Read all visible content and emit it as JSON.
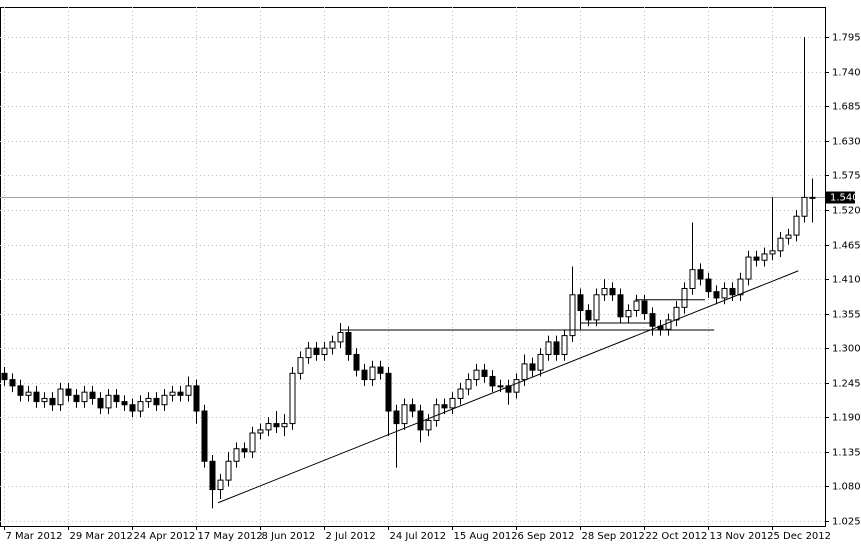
{
  "chart_data": {
    "type": "candlestick",
    "xticks": [
      {
        "value": 0,
        "label": "7 Mar 2012"
      },
      {
        "value": 8,
        "label": "29 Mar 2012"
      },
      {
        "value": 16,
        "label": "24 Apr 2012"
      },
      {
        "value": 24,
        "label": "17 May 2012"
      },
      {
        "value": 32,
        "label": "8 Jun 2012"
      },
      {
        "value": 40,
        "label": "2 Jul 2012"
      },
      {
        "value": 48,
        "label": "24 Jul 2012"
      },
      {
        "value": 56,
        "label": "15 Aug 2012"
      },
      {
        "value": 64,
        "label": "6 Sep 2012"
      },
      {
        "value": 72,
        "label": "28 Sep 2012"
      },
      {
        "value": 80,
        "label": "22 Oct 2012"
      },
      {
        "value": 88,
        "label": "13 Nov 2012"
      },
      {
        "value": 96,
        "label": "5 Dec 2012"
      }
    ],
    "xlim": [
      -0.5,
      102.6
    ],
    "ylim": [
      1.017,
      1.843
    ],
    "yticks": [
      1.025,
      {
        "value": 1.08,
        "label": "1.080"
      },
      1.135,
      {
        "value": 1.19,
        "label": "1.190"
      },
      1.245,
      {
        "value": 1.3,
        "label": "1.300"
      },
      1.355,
      {
        "value": 1.41,
        "label": "1.410"
      },
      1.465,
      {
        "value": 1.52,
        "label": "1.520"
      },
      1.575,
      {
        "value": 1.63,
        "label": "1.630"
      },
      1.685,
      {
        "value": 1.74,
        "label": "1.740"
      },
      1.795
    ],
    "grid": true,
    "up_color": "#ffffff",
    "down_color": "#000000",
    "open": [
      1.26,
      1.25,
      1.24,
      1.225,
      1.23,
      1.215,
      1.22,
      1.21,
      1.235,
      1.225,
      1.215,
      1.23,
      1.22,
      1.205,
      1.225,
      1.215,
      1.21,
      1.2,
      1.215,
      1.22,
      1.21,
      1.225,
      1.23,
      1.225,
      1.24,
      1.2,
      1.12,
      1.075,
      1.09,
      1.12,
      1.14,
      1.135,
      1.165,
      1.17,
      1.18,
      1.175,
      1.18,
      1.26,
      1.285,
      1.3,
      1.29,
      1.3,
      1.31,
      1.325,
      1.29,
      1.265,
      1.25,
      1.27,
      1.26,
      1.2,
      1.18,
      1.21,
      1.2,
      1.17,
      1.185,
      1.21,
      1.205,
      1.22,
      1.235,
      1.25,
      1.265,
      1.255,
      1.24,
      1.24,
      1.23,
      1.25,
      1.275,
      1.265,
      1.29,
      1.31,
      1.29,
      1.32,
      1.385,
      1.36,
      1.345,
      1.385,
      1.395,
      1.385,
      1.35,
      1.36,
      1.375,
      1.355,
      1.335,
      1.33,
      1.345,
      1.365,
      1.395,
      1.425,
      1.41,
      1.39,
      1.38,
      1.395,
      1.385,
      1.41,
      1.445,
      1.44,
      1.45,
      1.455,
      1.475,
      1.48,
      1.51,
      1.54
    ],
    "high": [
      1.27,
      1.26,
      1.25,
      1.24,
      1.24,
      1.23,
      1.23,
      1.245,
      1.245,
      1.235,
      1.24,
      1.24,
      1.23,
      1.235,
      1.235,
      1.225,
      1.22,
      1.225,
      1.23,
      1.23,
      1.235,
      1.24,
      1.24,
      1.255,
      1.25,
      1.21,
      1.13,
      1.1,
      1.135,
      1.15,
      1.15,
      1.175,
      1.18,
      1.19,
      1.2,
      1.195,
      1.27,
      1.295,
      1.31,
      1.31,
      1.31,
      1.32,
      1.34,
      1.335,
      1.3,
      1.275,
      1.28,
      1.28,
      1.27,
      1.21,
      1.22,
      1.22,
      1.21,
      1.195,
      1.22,
      1.22,
      1.23,
      1.245,
      1.26,
      1.275,
      1.275,
      1.265,
      1.25,
      1.25,
      1.26,
      1.29,
      1.285,
      1.3,
      1.32,
      1.32,
      1.33,
      1.43,
      1.395,
      1.37,
      1.395,
      1.41,
      1.405,
      1.395,
      1.37,
      1.385,
      1.385,
      1.365,
      1.345,
      1.355,
      1.375,
      1.405,
      1.5,
      1.435,
      1.42,
      1.4,
      1.405,
      1.405,
      1.42,
      1.455,
      1.455,
      1.46,
      1.54,
      1.485,
      1.49,
      1.52,
      1.795,
      1.57
    ],
    "low": [
      1.24,
      1.23,
      1.215,
      1.215,
      1.205,
      1.205,
      1.2,
      1.2,
      1.215,
      1.205,
      1.205,
      1.21,
      1.195,
      1.195,
      1.205,
      1.2,
      1.19,
      1.19,
      1.205,
      1.2,
      1.2,
      1.215,
      1.215,
      1.215,
      1.18,
      1.11,
      1.045,
      1.06,
      1.08,
      1.11,
      1.125,
      1.125,
      1.155,
      1.16,
      1.165,
      1.16,
      1.17,
      1.25,
      1.275,
      1.28,
      1.28,
      1.29,
      1.3,
      1.28,
      1.255,
      1.24,
      1.24,
      1.25,
      1.16,
      1.11,
      1.17,
      1.19,
      1.15,
      1.16,
      1.175,
      1.195,
      1.195,
      1.21,
      1.225,
      1.24,
      1.245,
      1.23,
      1.23,
      1.21,
      1.22,
      1.24,
      1.255,
      1.255,
      1.28,
      1.28,
      1.28,
      1.31,
      1.33,
      1.335,
      1.335,
      1.375,
      1.375,
      1.34,
      1.34,
      1.35,
      1.345,
      1.32,
      1.32,
      1.32,
      1.335,
      1.355,
      1.385,
      1.4,
      1.38,
      1.37,
      1.37,
      1.375,
      1.375,
      1.4,
      1.43,
      1.43,
      1.44,
      1.445,
      1.465,
      1.47,
      1.5,
      1.5
    ],
    "close": [
      1.25,
      1.24,
      1.225,
      1.23,
      1.215,
      1.22,
      1.21,
      1.235,
      1.225,
      1.215,
      1.23,
      1.22,
      1.205,
      1.225,
      1.215,
      1.21,
      1.2,
      1.215,
      1.22,
      1.21,
      1.225,
      1.23,
      1.225,
      1.24,
      1.2,
      1.12,
      1.075,
      1.09,
      1.12,
      1.14,
      1.135,
      1.165,
      1.17,
      1.18,
      1.175,
      1.18,
      1.26,
      1.285,
      1.3,
      1.29,
      1.3,
      1.31,
      1.325,
      1.29,
      1.265,
      1.25,
      1.27,
      1.26,
      1.2,
      1.18,
      1.21,
      1.2,
      1.17,
      1.185,
      1.21,
      1.205,
      1.22,
      1.235,
      1.25,
      1.265,
      1.255,
      1.24,
      1.24,
      1.23,
      1.25,
      1.275,
      1.265,
      1.29,
      1.31,
      1.29,
      1.32,
      1.385,
      1.36,
      1.345,
      1.385,
      1.395,
      1.385,
      1.35,
      1.36,
      1.375,
      1.355,
      1.335,
      1.33,
      1.345,
      1.365,
      1.395,
      1.425,
      1.41,
      1.39,
      1.38,
      1.395,
      1.385,
      1.41,
      1.445,
      1.44,
      1.45,
      1.455,
      1.475,
      1.48,
      1.51,
      1.54,
      1.54
    ],
    "last_price": {
      "value": 1.54,
      "label": "1.540"
    },
    "trendlines": [
      {
        "x": [
          26.75,
          99.25
        ],
        "y": [
          1.054,
          1.423
        ]
      },
      {
        "x": [
          42,
          88.75
        ],
        "y": [
          1.329,
          1.329
        ]
      },
      {
        "x": [
          72,
          81.4
        ],
        "y": [
          1.34,
          1.34
        ]
      },
      {
        "x": [
          78.9,
          87.6
        ],
        "y": [
          1.377,
          1.377
        ]
      }
    ]
  }
}
